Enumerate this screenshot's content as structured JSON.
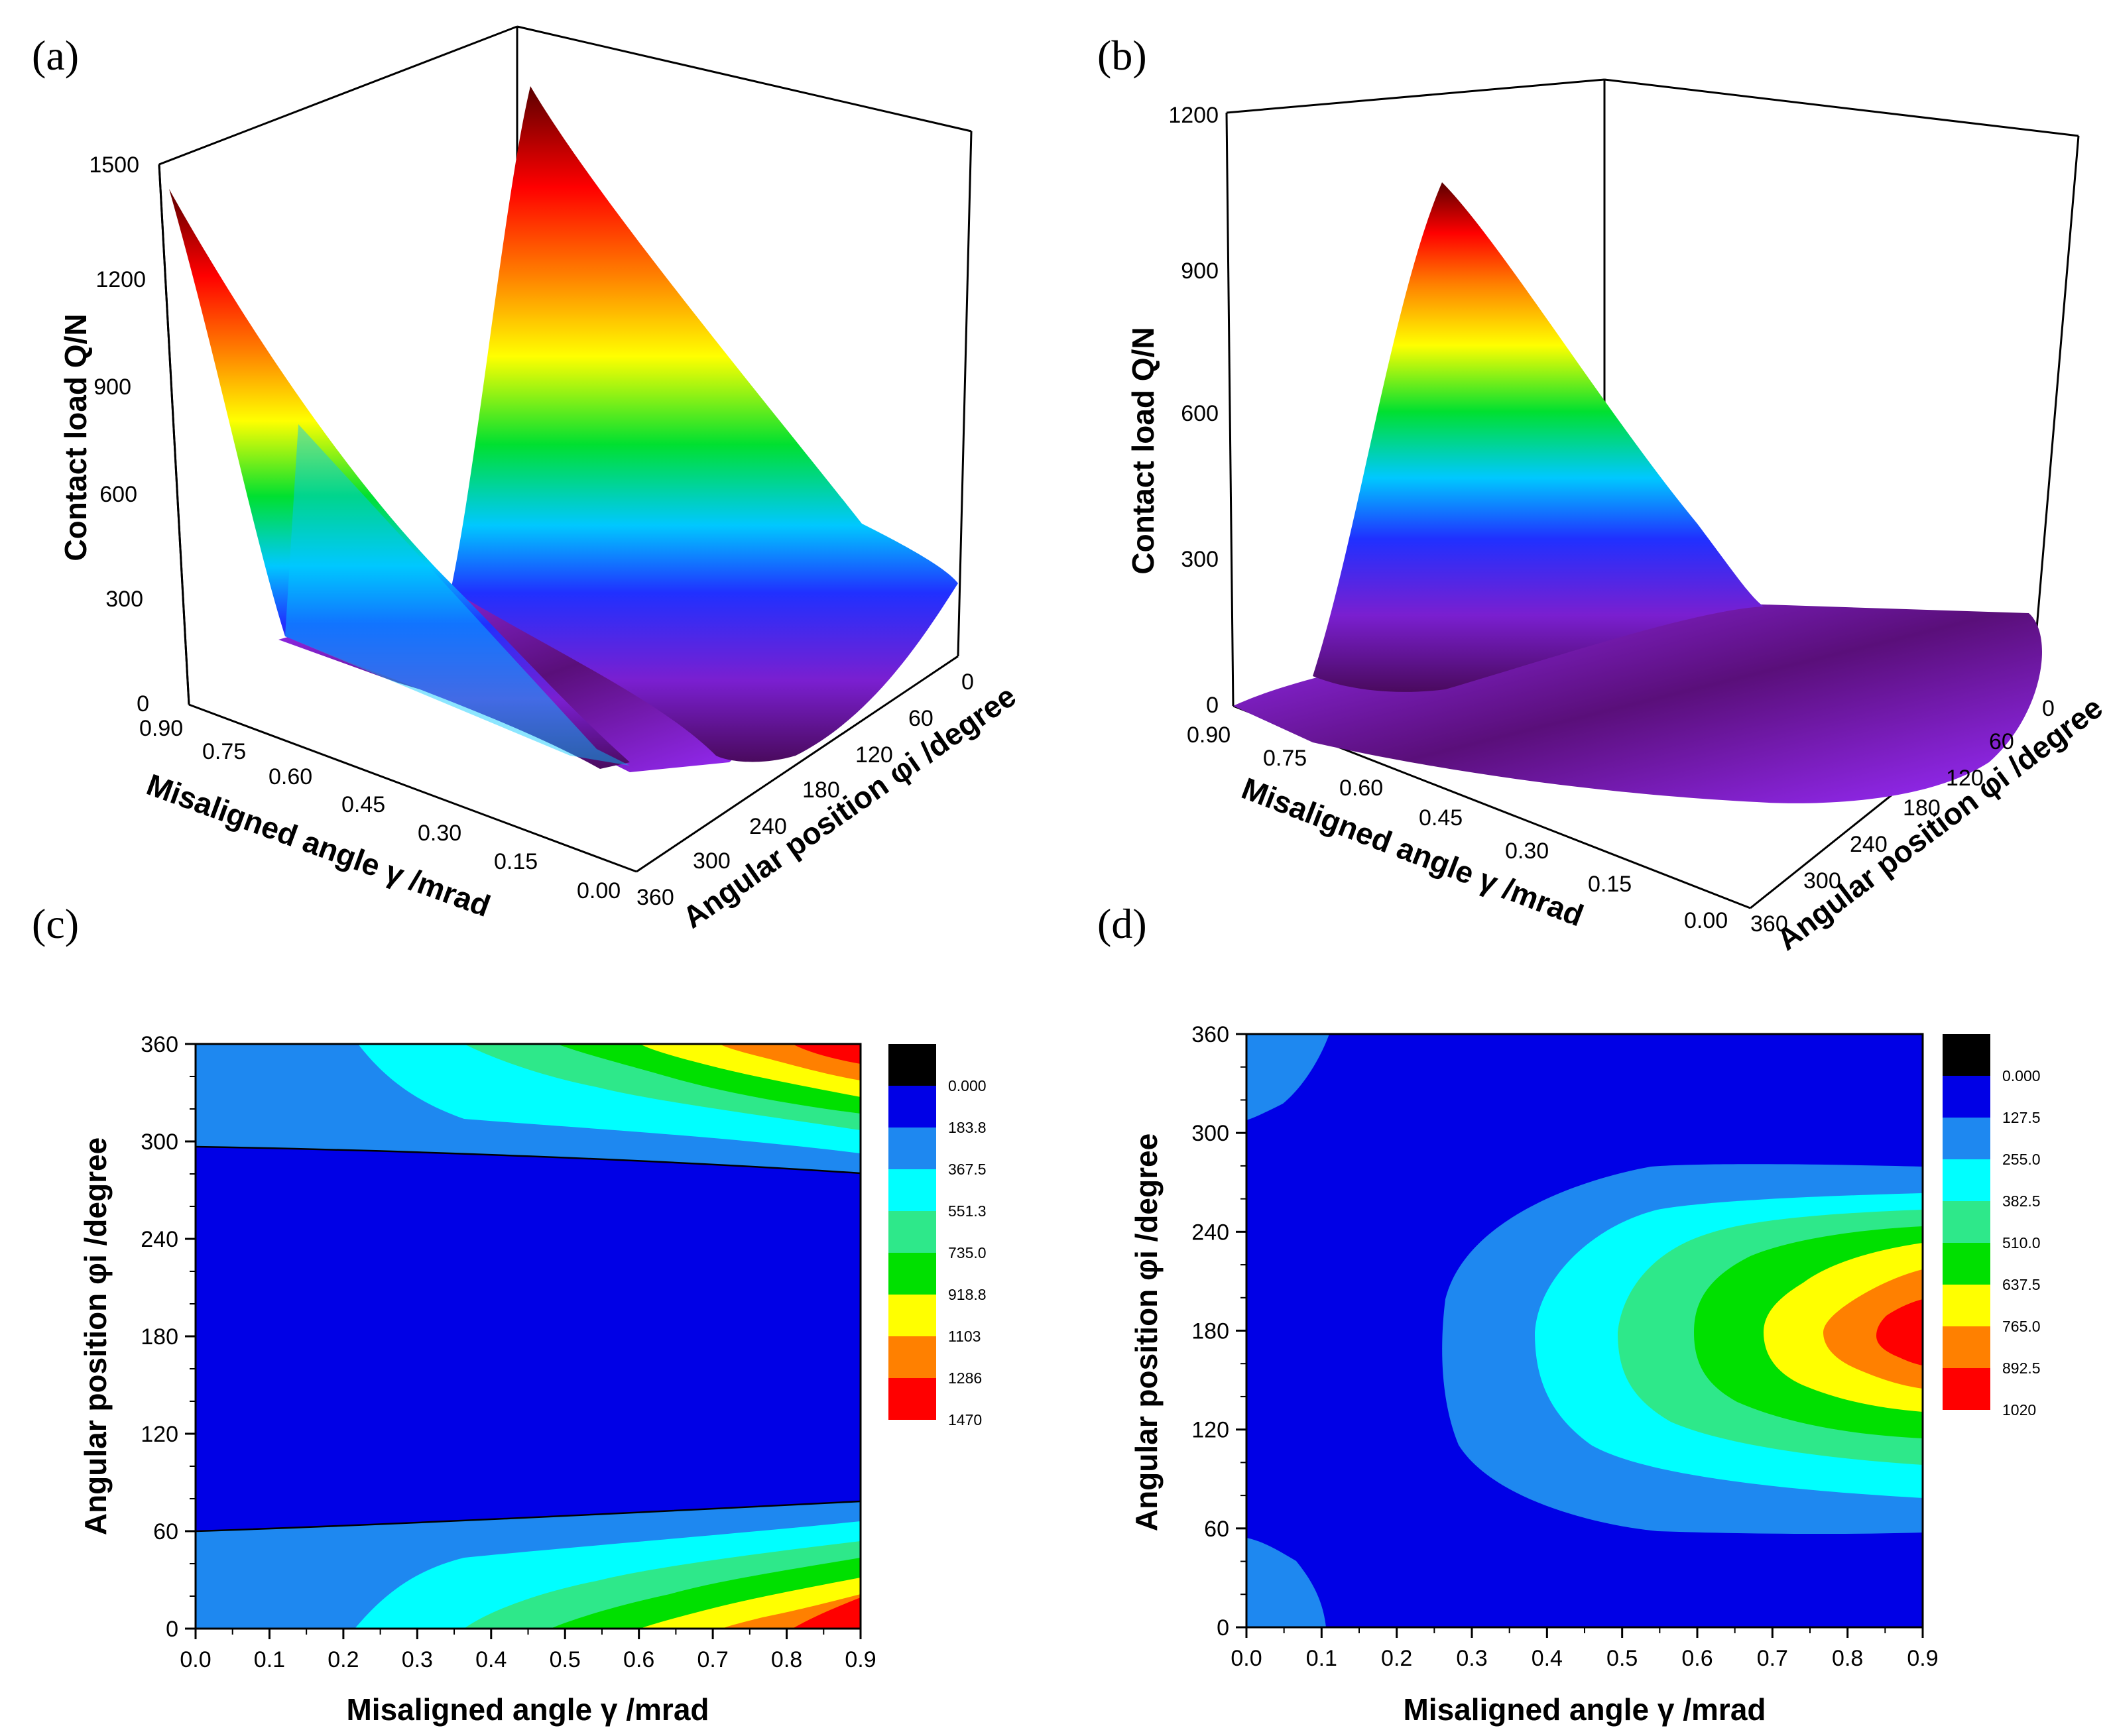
{
  "chart_data": [
    {
      "id": "a",
      "type": "surface3d",
      "panel_label": "(a)",
      "zlabel": "Contact load Q/N",
      "xlabel": "Misaligned angle γ /mrad",
      "ylabel": "Angular position φi /degree",
      "z_ticks": [
        "0",
        "300",
        "600",
        "900",
        "1200",
        "1500"
      ],
      "x_ticks": [
        "0.90",
        "0.75",
        "0.60",
        "0.45",
        "0.30",
        "0.15",
        "0.00"
      ],
      "y_ticks": [
        "0",
        "60",
        "120",
        "180",
        "240",
        "300",
        "360"
      ],
      "zlim": [
        0,
        1500
      ],
      "peak_load": 1470
    },
    {
      "id": "b",
      "type": "surface3d",
      "panel_label": "(b)",
      "zlabel": "Contact load Q/N",
      "xlabel": "Misaligned angle γ /mrad",
      "ylabel": "Angular position φi /degree",
      "z_ticks": [
        "0",
        "300",
        "600",
        "900",
        "1200"
      ],
      "x_ticks": [
        "0.90",
        "0.75",
        "0.60",
        "0.45",
        "0.30",
        "0.15",
        "0.00"
      ],
      "y_ticks": [
        "0",
        "60",
        "120",
        "180",
        "240",
        "300",
        "360"
      ],
      "zlim": [
        0,
        1200
      ],
      "peak_load": 1020
    },
    {
      "id": "c",
      "type": "contour",
      "panel_label": "(c)",
      "xlabel": "Misaligned angle γ /mrad",
      "ylabel": "Angular position φi /degree",
      "x_ticks": [
        "0.0",
        "0.1",
        "0.2",
        "0.3",
        "0.4",
        "0.5",
        "0.6",
        "0.7",
        "0.8",
        "0.9"
      ],
      "y_ticks": [
        "0",
        "60",
        "120",
        "180",
        "240",
        "300",
        "360"
      ],
      "xlim": [
        0,
        0.9
      ],
      "ylim": [
        0,
        360
      ],
      "legend_levels": [
        "0.000",
        "183.8",
        "367.5",
        "551.3",
        "735.0",
        "918.8",
        "1103",
        "1286",
        "1470"
      ],
      "legend_colors": [
        "#000000",
        "#0000e6",
        "#1e88f0",
        "#00ffff",
        "#2ee88a",
        "#00e000",
        "#ffff00",
        "#ff8000",
        "#ff0000"
      ],
      "peak_load": 1470
    },
    {
      "id": "d",
      "type": "contour",
      "panel_label": "(d)",
      "xlabel": "Misaligned angle γ /mrad",
      "ylabel": "Angular position φi /degree",
      "x_ticks": [
        "0.0",
        "0.1",
        "0.2",
        "0.3",
        "0.4",
        "0.5",
        "0.6",
        "0.7",
        "0.8",
        "0.9"
      ],
      "y_ticks": [
        "0",
        "60",
        "120",
        "180",
        "240",
        "300",
        "360"
      ],
      "xlim": [
        0,
        0.9
      ],
      "ylim": [
        0,
        360
      ],
      "legend_levels": [
        "0.000",
        "127.5",
        "255.0",
        "382.5",
        "510.0",
        "637.5",
        "765.0",
        "892.5",
        "1020"
      ],
      "legend_colors": [
        "#000000",
        "#0000e6",
        "#1e88f0",
        "#00ffff",
        "#2ee88a",
        "#00e000",
        "#ffff00",
        "#ff8000",
        "#ff0000"
      ],
      "peak_load": 1020
    }
  ]
}
